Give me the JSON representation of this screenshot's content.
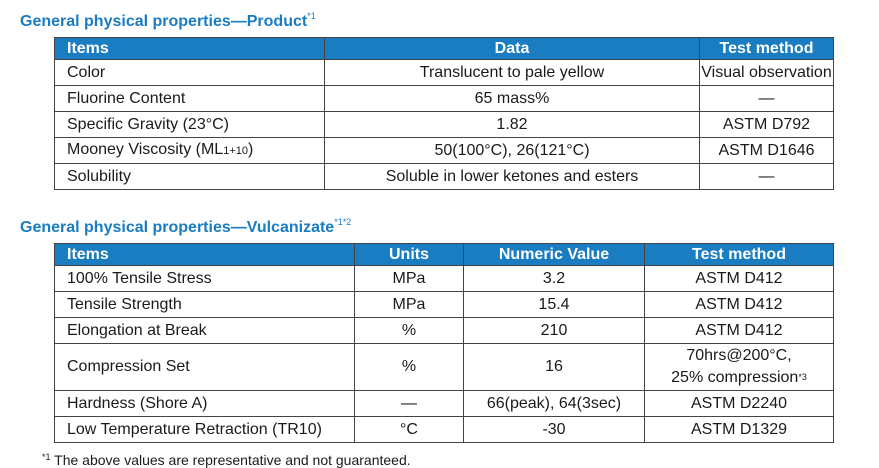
{
  "product": {
    "title": "General physical properties—Product",
    "title_note": "*1",
    "headers": [
      "Items",
      "Data",
      "Test method"
    ],
    "rows": [
      {
        "item": "Color",
        "data": "Translucent to pale yellow",
        "method": "Visual observation"
      },
      {
        "item": "Fluorine Content",
        "data": "65 mass%",
        "method": "—"
      },
      {
        "item": "Specific Gravity (23°C)",
        "data": "1.82",
        "method": "ASTM D792"
      },
      {
        "item_main": "Mooney Viscosity (ML",
        "item_sub": "1+10",
        "item_end": ")",
        "data": "50(100°C), 26(121°C)",
        "method": "ASTM D1646"
      },
      {
        "item": "Solubility",
        "data": "Soluble in lower ketones and esters",
        "method": "—"
      }
    ]
  },
  "vulcanizate": {
    "title": "General physical properties—Vulcanizate",
    "title_note": "*1*2",
    "headers": [
      "Items",
      "Units",
      "Numeric Value",
      "Test method"
    ],
    "rows": [
      {
        "item": "100% Tensile Stress",
        "units": "MPa",
        "value": "3.2",
        "method": "ASTM D412"
      },
      {
        "item": "Tensile Strength",
        "units": "MPa",
        "value": "15.4",
        "method": "ASTM D412"
      },
      {
        "item": "Elongation at Break",
        "units": "%",
        "value": "210",
        "method": "ASTM D412"
      },
      {
        "item": "Compression Set",
        "units": "%",
        "value": "16",
        "method_line1": "70hrs@200°C,",
        "method_line2": "25% compression",
        "method_note": "*3"
      },
      {
        "item": "Hardness (Shore A)",
        "units": "—",
        "value": "66(peak), 64(3sec)",
        "method": "ASTM D2240"
      },
      {
        "item": "Low Temperature Retraction (TR10)",
        "units": "°C",
        "value": "-30",
        "method": "ASTM D1329"
      }
    ]
  },
  "footnote": {
    "mark": "*1",
    "text": " The above values are representative and not guaranteed."
  }
}
